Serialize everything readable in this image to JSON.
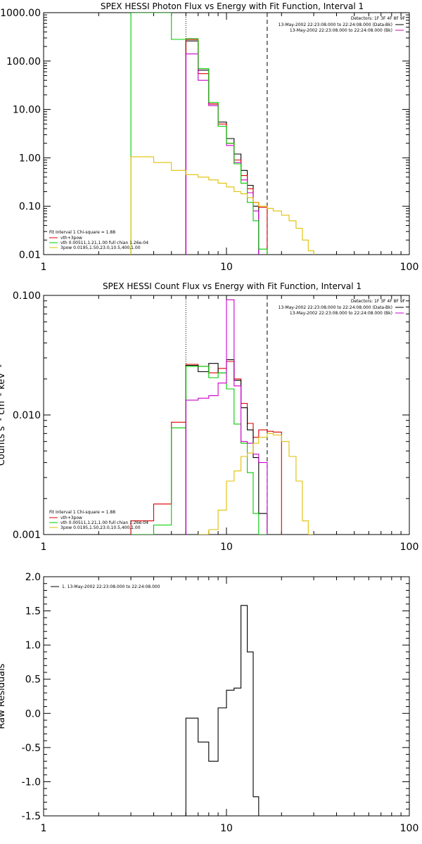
{
  "chart_data": [
    {
      "type": "line",
      "step": true,
      "title": "SPEX HESSI Photon Flux vs Energy with Fit Function, Interval 1",
      "xlabel": "",
      "ylabel": "",
      "xscale": "log",
      "yscale": "log",
      "xlim": [
        1,
        100
      ],
      "ylim": [
        0.01,
        1000
      ],
      "x_ticks": [
        "1",
        "10",
        "100"
      ],
      "y_ticks": [
        "0.01",
        "0.10",
        "1.00",
        "10.00",
        "100.00",
        "1000.00"
      ],
      "legend_top": {
        "detectors": "Detectors: 1F 3F 4F 8F 9F",
        "entries": [
          {
            "label": "13-May-2002 22:23:08.000 to 22:24:08.000 (Data-Bk)",
            "color": "#000000"
          },
          {
            "label": "13-May-2002 22:23:08.000 to 22:24:08.000 (Bk)",
            "color": "#cc00cc"
          }
        ]
      },
      "legend_bottom": {
        "header": "Fit Interval 1    Chi-square = 1.88",
        "entries": [
          {
            "label": "vth+3pow",
            "color": "#dd0000"
          },
          {
            "label": "vth 0.00511,1.21,1.00   full chian 1.26e-04",
            "color": "#00cc00"
          },
          {
            "label": "3pow 0.0195,1.50,23.0,10.5,400,1.00",
            "color": "#e0c000"
          }
        ]
      },
      "vlines": [
        {
          "x": 6.0,
          "style": "dotted"
        },
        {
          "x": 16.7,
          "style": "dashed"
        }
      ],
      "edges": [
        3.0,
        4.0,
        5.0,
        6.0,
        7.0,
        8.0,
        9.0,
        10.0,
        11.0,
        12.0,
        13.0,
        14.0,
        15.0,
        16.7,
        18.0,
        20.0,
        22.0,
        24.0,
        26.0,
        28.0,
        30.0
      ],
      "series": [
        {
          "color": "#000000",
          "start": 3,
          "end": 13,
          "values": [
            260,
            65,
            13,
            5.5,
            2.5,
            1.2,
            0.55,
            0.27,
            0.1
          ]
        },
        {
          "color": "#dd0000",
          "start": 3,
          "end": 14,
          "values": [
            280,
            55,
            13,
            5.0,
            2.0,
            0.9,
            0.43,
            0.23,
            0.12,
            0.095
          ]
        },
        {
          "color": "#cc00cc",
          "start": 3,
          "end": 13,
          "values": [
            140,
            40,
            12,
            4.5,
            1.8,
            0.8,
            0.35,
            0.19,
            0.08
          ]
        },
        {
          "color": "#00cc00",
          "start": 0,
          "end": 13,
          "values": [
            1000,
            1000,
            280,
            290,
            70,
            14,
            4.5,
            2.0,
            0.75,
            0.3,
            0.12,
            0.05,
            0.013
          ]
        },
        {
          "color": "#e0c000",
          "start": 0,
          "end": 20,
          "values": [
            1.05,
            0.8,
            0.55,
            0.45,
            0.4,
            0.35,
            0.3,
            0.25,
            0.2,
            0.18,
            0.15,
            0.12,
            0.1,
            0.09,
            0.08,
            0.065,
            0.05,
            0.035,
            0.02,
            0.012
          ]
        }
      ]
    },
    {
      "type": "line",
      "step": true,
      "title": "SPEX HESSI Count Flux vs Energy with Fit Function, Interval 1",
      "xlabel": "",
      "ylabel": "Counts s⁻¹ cm⁻² keV⁻¹",
      "xscale": "log",
      "yscale": "log",
      "xlim": [
        1,
        100
      ],
      "ylim": [
        0.001,
        0.1
      ],
      "x_ticks": [
        "1",
        "10",
        "100"
      ],
      "y_ticks": [
        "0.001",
        "0.010",
        "0.100"
      ],
      "legend_top": {
        "detectors": "Detectors: 1F 3F 4F 8F 9F",
        "entries": [
          {
            "label": "13-May-2002 22:23:08.000 to 22:24:08.000 (Data-Bk)",
            "color": "#000000"
          },
          {
            "label": "13-May-2002 22:23:08.000 to 22:24:08.000 (Bk)",
            "color": "#cc00cc"
          }
        ]
      },
      "legend_bottom": {
        "header": "Fit Interval 1    Chi-square = 1.88",
        "entries": [
          {
            "label": "vth+3pow",
            "color": "#dd0000"
          },
          {
            "label": "vth 0.00511,1.21,1.00   full chian 1.26e-04",
            "color": "#00cc00"
          },
          {
            "label": "3pow 0.0195,1.50,23.0,10.5,400,1.00",
            "color": "#e0c000"
          }
        ]
      },
      "vlines": [
        {
          "x": 6.0,
          "style": "dotted"
        },
        {
          "x": 16.7,
          "style": "dashed"
        }
      ],
      "edges": [
        3.0,
        4.0,
        5.0,
        6.0,
        7.0,
        8.0,
        9.0,
        10.0,
        11.0,
        12.0,
        13.0,
        14.0,
        15.0,
        16.7,
        18.0,
        20.0,
        22.0,
        24.0,
        26.0,
        28.0,
        30.0
      ],
      "series": [
        {
          "color": "#dd0000",
          "start": 0,
          "end": 15,
          "values": [
            0.0013,
            0.0018,
            0.0087,
            0.0265,
            0.0255,
            0.0225,
            0.0245,
            0.028,
            0.02,
            0.0125,
            0.0085,
            0.0065,
            0.0075,
            0.0073,
            0.0072
          ]
        },
        {
          "color": "#000000",
          "start": 3,
          "end": 13,
          "values": [
            0.026,
            0.023,
            0.027,
            0.0225,
            0.029,
            0.0195,
            0.0115,
            0.0075,
            0.0044,
            0.0015
          ]
        },
        {
          "color": "#00cc00",
          "start": 0,
          "end": 13,
          "values": [
            0.001,
            0.0012,
            0.0078,
            0.0255,
            0.0255,
            0.0205,
            0.0225,
            0.0165,
            0.0084,
            0.0058,
            0.0033,
            0.0015,
            0.001
          ]
        },
        {
          "color": "#cc00cc",
          "start": 3,
          "end": 13,
          "values": [
            0.0133,
            0.0138,
            0.0145,
            0.0185,
            0.092,
            0.0175,
            0.006,
            0.0058,
            0.0047,
            0.004
          ]
        },
        {
          "color": "#e0c000",
          "start": 4,
          "end": 20,
          "values": [
            0.0009,
            0.0011,
            0.0016,
            0.0028,
            0.0034,
            0.0045,
            0.0048,
            0.0058,
            0.0065,
            0.007,
            0.0068,
            0.006,
            0.0045,
            0.0028,
            0.0013,
            0.0009
          ]
        }
      ]
    },
    {
      "type": "line",
      "step": true,
      "title": "",
      "xlabel": "",
      "ylabel": "Raw Residuals",
      "xscale": "log",
      "yscale": "linear",
      "xlim": [
        1,
        100
      ],
      "ylim": [
        -1.5,
        2.0
      ],
      "x_ticks": [
        "1",
        "10",
        "100"
      ],
      "y_ticks": [
        "-1.5",
        "-1.0",
        "-0.5",
        "0.0",
        "0.5",
        "1.0",
        "1.5",
        "2.0"
      ],
      "legend": {
        "entries": [
          {
            "label": "1. 13-May-2002 22:23:08.000 to 22:24:08.000",
            "color": "#000000"
          }
        ]
      },
      "edges": [
        3.0,
        4.0,
        5.0,
        6.0,
        7.0,
        8.0,
        9.0,
        10.0,
        11.0,
        12.0,
        13.0,
        14.0,
        15.0,
        16.7,
        18.0,
        20.0,
        22.0,
        24.0,
        26.0,
        28.0,
        30.0
      ],
      "series": [
        {
          "color": "#000000",
          "start": 3,
          "end": 13,
          "values": [
            -0.07,
            -0.42,
            -0.7,
            0.08,
            0.34,
            0.37,
            1.58,
            0.9,
            -1.22,
            -1.5
          ]
        }
      ]
    }
  ]
}
